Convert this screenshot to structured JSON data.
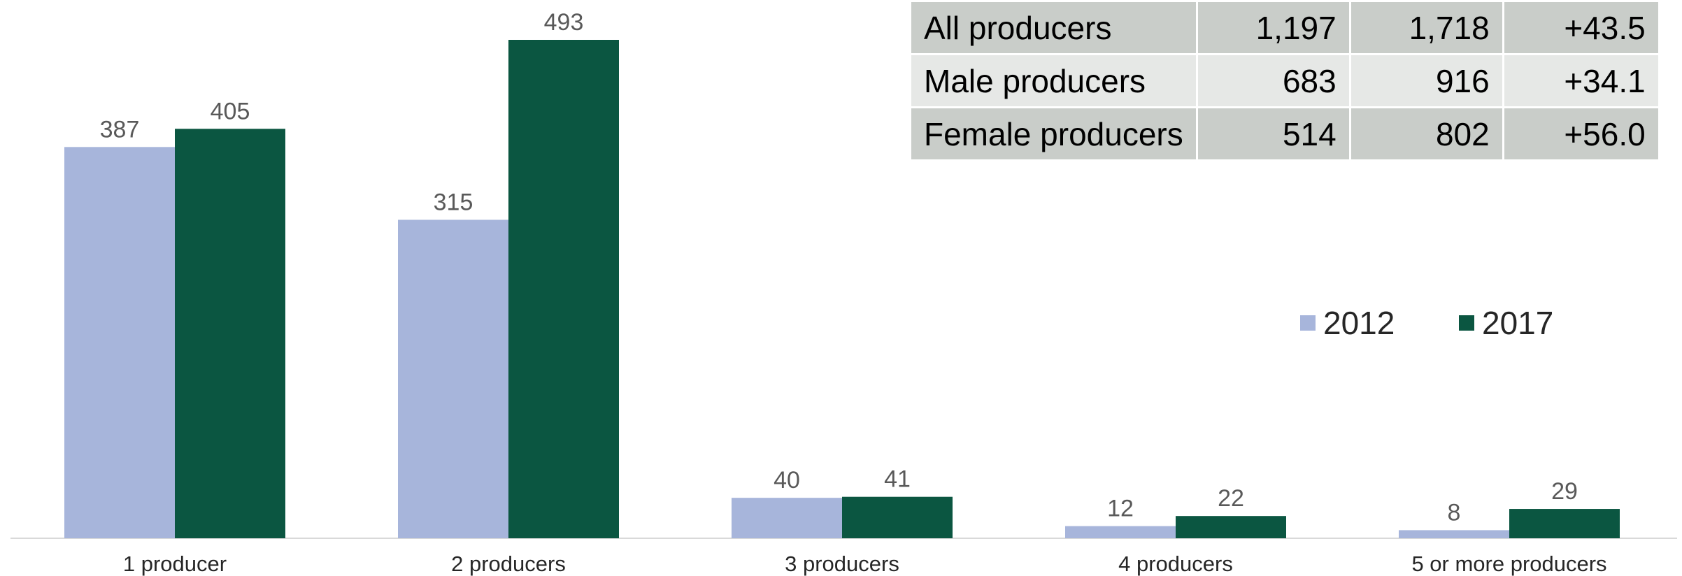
{
  "table": {
    "rows": [
      {
        "label": "All producers",
        "v2012": "1,197",
        "v2017": "1,718",
        "change": "+43.5"
      },
      {
        "label": "Male producers",
        "v2012": "683",
        "v2017": "916",
        "change": "+34.1"
      },
      {
        "label": "Female producers",
        "v2012": "514",
        "v2017": "802",
        "change": "+56.0"
      }
    ]
  },
  "chart_data": {
    "type": "bar",
    "categories": [
      "1 producer",
      "2 producers",
      "3 producers",
      "4 producers",
      "5 or more producers"
    ],
    "series": [
      {
        "name": "2012",
        "values": [
          387,
          315,
          40,
          12,
          8
        ],
        "color": "#a7b5db"
      },
      {
        "name": "2017",
        "values": [
          405,
          493,
          41,
          22,
          29
        ],
        "color": "#0b5641"
      }
    ],
    "ylim": [
      0,
      530
    ],
    "grid": false,
    "legend_position": "right"
  }
}
